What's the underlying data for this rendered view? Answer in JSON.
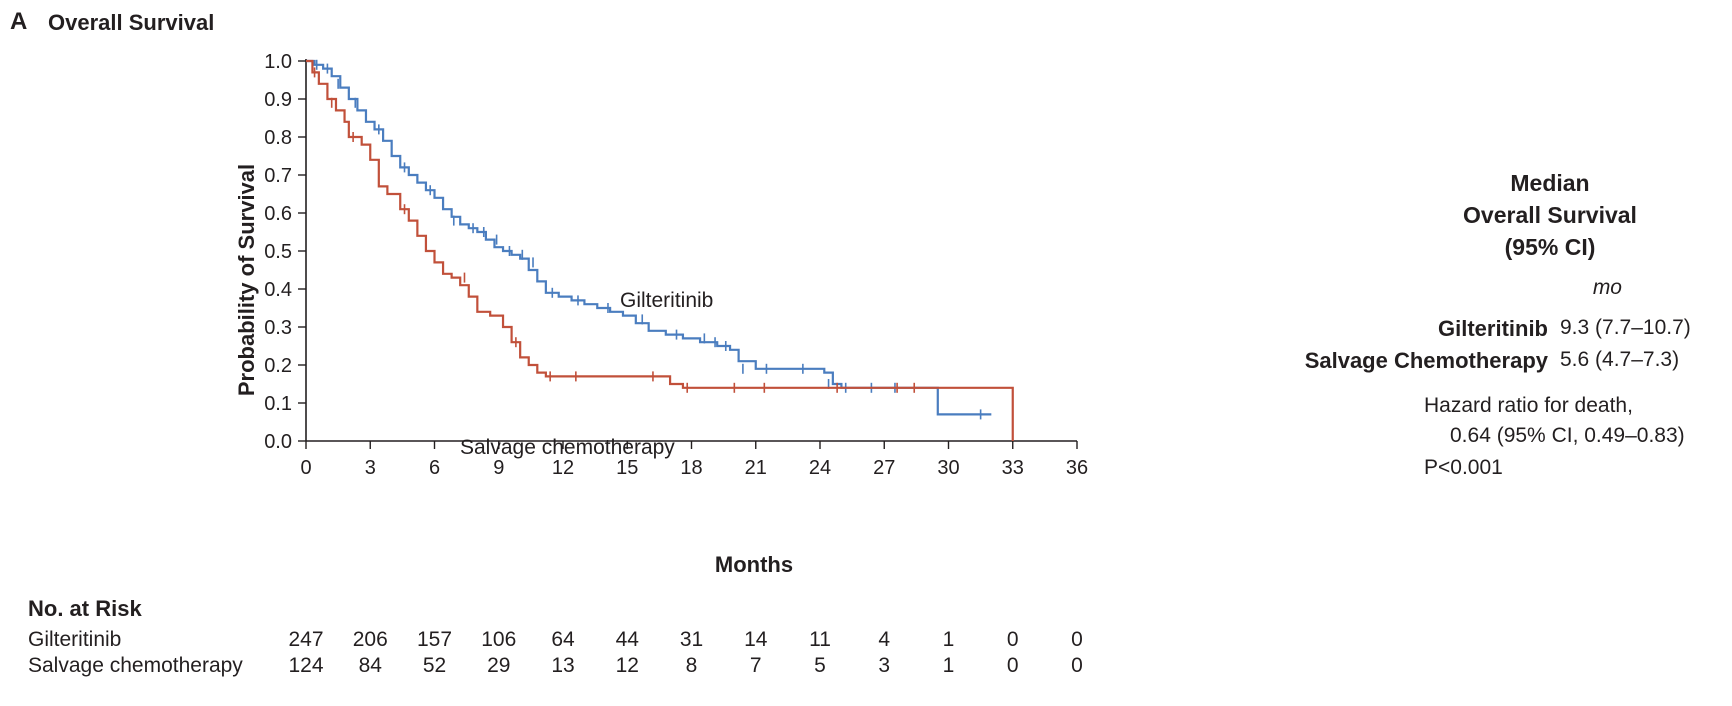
{
  "panel": {
    "letter": "A",
    "title": "Overall Survival"
  },
  "chart_data": {
    "type": "line",
    "step": true,
    "xlabel": "Months",
    "ylabel": "Probability of Survival",
    "xlim": [
      0,
      36
    ],
    "ylim": [
      0,
      1.0
    ],
    "xticks": [
      "0",
      "3",
      "6",
      "9",
      "12",
      "15",
      "18",
      "21",
      "24",
      "27",
      "30",
      "33",
      "36"
    ],
    "yticks": [
      "0.0",
      "0.1",
      "0.2",
      "0.3",
      "0.4",
      "0.5",
      "0.6",
      "0.7",
      "0.8",
      "0.9",
      "1.0"
    ],
    "grid": false,
    "series": [
      {
        "name": "Gilteritinib",
        "color": "#4a7dbf",
        "x": [
          0,
          0.4,
          0.8,
          1.2,
          1.6,
          2.0,
          2.4,
          2.8,
          3.2,
          3.6,
          4.0,
          4.4,
          4.8,
          5.2,
          5.6,
          6.0,
          6.4,
          6.8,
          7.2,
          7.6,
          8.0,
          8.4,
          8.8,
          9.2,
          9.6,
          10.0,
          10.4,
          10.8,
          11.2,
          11.8,
          12.4,
          13.0,
          13.6,
          14.2,
          14.8,
          15.4,
          16.0,
          16.8,
          17.6,
          18.4,
          19.2,
          19.8,
          20.2,
          21.0,
          22.0,
          23.0,
          24.2,
          24.6,
          25.0,
          26.0,
          27.0,
          28.0,
          29.0,
          29.5,
          30.5,
          31.5,
          32.0
        ],
        "y": [
          1.0,
          0.99,
          0.98,
          0.96,
          0.93,
          0.9,
          0.87,
          0.84,
          0.82,
          0.79,
          0.75,
          0.72,
          0.7,
          0.68,
          0.66,
          0.64,
          0.61,
          0.59,
          0.57,
          0.56,
          0.55,
          0.53,
          0.51,
          0.5,
          0.49,
          0.48,
          0.45,
          0.42,
          0.39,
          0.38,
          0.37,
          0.36,
          0.35,
          0.34,
          0.33,
          0.31,
          0.29,
          0.28,
          0.27,
          0.26,
          0.25,
          0.24,
          0.21,
          0.19,
          0.19,
          0.19,
          0.18,
          0.15,
          0.14,
          0.14,
          0.14,
          0.14,
          0.14,
          0.07,
          0.07,
          0.07,
          0.07
        ],
        "censored_x": [
          0.5,
          1.0,
          1.5,
          2.3,
          3.4,
          4.6,
          5.8,
          6.9,
          7.8,
          8.3,
          8.9,
          9.5,
          10.1,
          10.6,
          11.5,
          12.7,
          14.1,
          15.7,
          17.3,
          18.6,
          19.1,
          19.6,
          20.4,
          21.5,
          23.2,
          24.4,
          25.2,
          26.4,
          27.5,
          31.5
        ],
        "censored_y": [
          0.99,
          0.98,
          0.94,
          0.89,
          0.82,
          0.72,
          0.66,
          0.58,
          0.56,
          0.55,
          0.53,
          0.5,
          0.49,
          0.47,
          0.39,
          0.37,
          0.35,
          0.32,
          0.28,
          0.27,
          0.26,
          0.25,
          0.19,
          0.19,
          0.19,
          0.15,
          0.14,
          0.14,
          0.14,
          0.07
        ]
      },
      {
        "name": "Salvage chemotherapy",
        "color": "#c1503a",
        "x": [
          0,
          0.3,
          0.6,
          1.0,
          1.4,
          1.8,
          2.0,
          2.6,
          3.0,
          3.4,
          3.8,
          4.4,
          4.8,
          5.2,
          5.6,
          6.0,
          6.4,
          6.8,
          7.2,
          7.6,
          8.0,
          8.6,
          9.2,
          9.6,
          10.0,
          10.4,
          10.8,
          11.2,
          12.0,
          14.0,
          15.5,
          16.4,
          17.0,
          17.6,
          18.2,
          20.0,
          22.0,
          24.0,
          25.0,
          27.0,
          29.0,
          32.0,
          33.0
        ],
        "y": [
          1.0,
          0.97,
          0.94,
          0.9,
          0.87,
          0.84,
          0.8,
          0.78,
          0.74,
          0.67,
          0.65,
          0.61,
          0.58,
          0.54,
          0.5,
          0.47,
          0.44,
          0.43,
          0.41,
          0.38,
          0.34,
          0.33,
          0.3,
          0.26,
          0.22,
          0.2,
          0.18,
          0.17,
          0.17,
          0.17,
          0.17,
          0.17,
          0.15,
          0.14,
          0.14,
          0.14,
          0.14,
          0.14,
          0.14,
          0.14,
          0.14,
          0.14,
          0.0
        ],
        "censored_x": [
          0.4,
          1.2,
          2.2,
          4.6,
          7.4,
          9.8,
          11.4,
          12.6,
          16.2,
          17.8,
          20.0,
          21.4,
          24.8,
          27.6,
          28.4
        ],
        "censored_y": [
          0.97,
          0.89,
          0.8,
          0.61,
          0.43,
          0.26,
          0.17,
          0.17,
          0.17,
          0.14,
          0.14,
          0.14,
          0.14,
          0.14,
          0.14
        ]
      }
    ]
  },
  "curve_labels": {
    "gilteritinib": "Gilteritinib",
    "chemo": "Salvage chemotherapy"
  },
  "risk_table": {
    "header": "No. at Risk",
    "rows": [
      {
        "name": "Gilteritinib",
        "values": [
          "247",
          "206",
          "157",
          "106",
          "64",
          "44",
          "31",
          "14",
          "11",
          "4",
          "1",
          "0",
          "0"
        ]
      },
      {
        "name": "Salvage chemotherapy",
        "values": [
          "124",
          "84",
          "52",
          "29",
          "13",
          "12",
          "8",
          "7",
          "5",
          "3",
          "1",
          "0",
          "0"
        ]
      }
    ]
  },
  "stats": {
    "head_line1": "Median",
    "head_line2": "Overall Survival",
    "head_line3": "(95% CI)",
    "unit": "mo",
    "rows": [
      {
        "name": "Gilteritinib",
        "value": "9.3 (7.7–10.7)"
      },
      {
        "name": "Salvage Chemotherapy",
        "value": "5.6 (4.7–7.3)"
      }
    ],
    "hr_line1": "Hazard ratio for death,",
    "hr_line2": "0.64 (95% CI, 0.49–0.83)",
    "p_value": "P<0.001"
  }
}
